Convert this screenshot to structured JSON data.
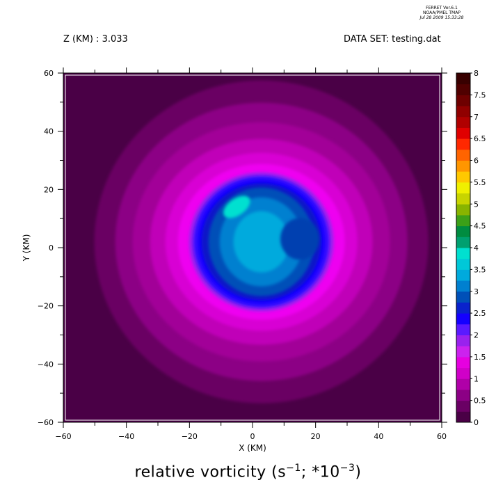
{
  "header": {
    "software": "FERRET  Ver.6.1",
    "org": "NOAA/PMEL TMAP",
    "timestamp": "Jul 28 2009 15:33:28",
    "z_level": "Z (KM) : 3.033",
    "dataset": "DATA SET: testing.dat"
  },
  "footer": {
    "title_pre": "relative vorticity (s",
    "title_exp1": "−1",
    "title_mid": "; *10",
    "title_exp2": "−3",
    "title_post": ")"
  },
  "chart_data": {
    "type": "heatmap",
    "title": "relative vorticity (s−1; *10−3)",
    "xlabel": "X (KM)",
    "ylabel": "Y (KM)",
    "xlim": [
      -60,
      60
    ],
    "ylim": [
      -60,
      60
    ],
    "x_ticks": [
      -60,
      -40,
      -20,
      0,
      20,
      40,
      60
    ],
    "y_ticks": [
      -60,
      -40,
      -20,
      0,
      20,
      40,
      60
    ],
    "colorbar": {
      "levels": [
        0,
        0.5,
        1,
        1.5,
        2,
        2.5,
        3,
        3.5,
        4,
        4.5,
        5,
        5.5,
        6,
        6.5,
        7,
        7.5,
        8
      ],
      "labels": [
        "0",
        "0.5",
        "1",
        "1.5",
        "2",
        "2.5",
        "3",
        "3.5",
        "4",
        "4.5",
        "5",
        "5.5",
        "6",
        "6.5",
        "7",
        "7.5",
        "8"
      ],
      "colors": [
        "#4a0046",
        "#6a0064",
        "#8c0085",
        "#b000a8",
        "#d000c8",
        "#e600e0",
        "#cc22ee",
        "#9922ee",
        "#5a1aff",
        "#1400ff",
        "#0a22cc",
        "#0050b8",
        "#0080d0",
        "#00aadd",
        "#00c8d8",
        "#00e0d0",
        "#00a070",
        "#008c40",
        "#3ca018",
        "#88b400",
        "#c8d400",
        "#f0f000",
        "#ffc800",
        "#ff9600",
        "#ff6400",
        "#ff2800",
        "#e00000",
        "#b00000",
        "#900000",
        "#6e0000",
        "#500000",
        "#380000"
      ]
    },
    "features": [
      {
        "name": "core",
        "x": 5,
        "y": 2,
        "peak": 4.1
      },
      {
        "name": "inner-ring",
        "x": 5,
        "y": 2,
        "value": 2.2
      },
      {
        "name": "outer-ring",
        "x": 0,
        "y": 0,
        "value": 1.2
      },
      {
        "name": "background",
        "value": 0.3
      }
    ]
  }
}
